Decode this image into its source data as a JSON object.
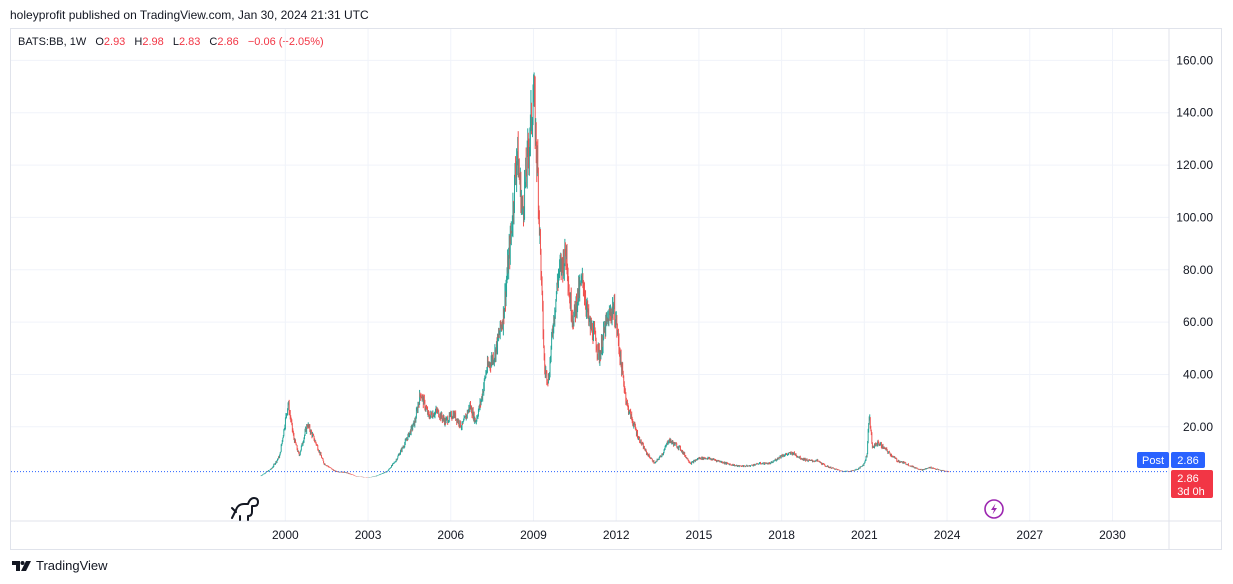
{
  "header": {
    "text": "holeyprofit published on TradingView.com, Jan 30, 2024 21:31 UTC"
  },
  "legend": {
    "symbol": "BATS:BB, 1W",
    "o_label": "O",
    "o_value": "2.93",
    "h_label": "H",
    "h_value": "2.98",
    "l_label": "L",
    "l_value": "2.83",
    "c_label": "C",
    "c_value": "2.86",
    "change": "−0.06 (−2.05%)"
  },
  "price_labels": {
    "post_label": "Post",
    "post_value": "2.86",
    "last_value": "2.86",
    "countdown": "3d 0h"
  },
  "footer": {
    "brand": "TradingView"
  },
  "colors": {
    "up": "#26a69a",
    "down": "#ef5350",
    "post_badge": "#2962ff",
    "last_badge": "#f23645",
    "event_icon": "#9c27b0"
  },
  "icons": {
    "chart_start": "dinosaur-icon",
    "event": "lightning-icon",
    "logo": "tradingview-logo-icon"
  },
  "chart_data": {
    "type": "candlestick",
    "interval": "1W",
    "yticks": [
      "160.00",
      "140.00",
      "120.00",
      "100.00",
      "80.00",
      "60.00",
      "40.00",
      "20.00"
    ],
    "ytick_values": [
      160,
      140,
      120,
      100,
      80,
      60,
      40,
      20
    ],
    "xticks": [
      "2000",
      "2003",
      "2006",
      "2009",
      "2012",
      "2015",
      "2018",
      "2021",
      "2024",
      "2027",
      "2030"
    ],
    "xtick_values": [
      2000,
      2003,
      2006,
      2009,
      2012,
      2015,
      2018,
      2021,
      2024,
      2027,
      2030
    ],
    "ylim": [
      -16,
      172
    ],
    "xlim": [
      1990.05,
      2032.05
    ],
    "last_price": 2.86,
    "price_path": [
      [
        1999.1,
        1.2
      ],
      [
        1999.5,
        4.0
      ],
      [
        1999.8,
        9.0
      ],
      [
        2000.1,
        29.0
      ],
      [
        2000.3,
        16.0
      ],
      [
        2000.5,
        9.0
      ],
      [
        2000.8,
        21.0
      ],
      [
        2001.1,
        14.0
      ],
      [
        2001.4,
        6.0
      ],
      [
        2001.8,
        3.0
      ],
      [
        2002.2,
        2.5
      ],
      [
        2002.6,
        1.0
      ],
      [
        2003.0,
        0.6
      ],
      [
        2003.3,
        1.2
      ],
      [
        2003.7,
        3.0
      ],
      [
        2004.0,
        7.0
      ],
      [
        2004.3,
        13.0
      ],
      [
        2004.7,
        22.0
      ],
      [
        2004.9,
        33.0
      ],
      [
        2005.2,
        24.0
      ],
      [
        2005.5,
        26.0
      ],
      [
        2005.8,
        22.0
      ],
      [
        2006.1,
        25.0
      ],
      [
        2006.4,
        20.0
      ],
      [
        2006.7,
        28.0
      ],
      [
        2006.9,
        22.0
      ],
      [
        2007.1,
        30.0
      ],
      [
        2007.3,
        42.0
      ],
      [
        2007.6,
        48.0
      ],
      [
        2007.9,
        62.0
      ],
      [
        2008.2,
        95.0
      ],
      [
        2008.4,
        126.0
      ],
      [
        2008.6,
        102.0
      ],
      [
        2008.9,
        135.0
      ],
      [
        2009.0,
        148.0
      ],
      [
        2009.15,
        118.0
      ],
      [
        2009.3,
        72.0
      ],
      [
        2009.4,
        42.0
      ],
      [
        2009.55,
        38.0
      ],
      [
        2009.7,
        58.0
      ],
      [
        2009.9,
        78.0
      ],
      [
        2010.1,
        84.0
      ],
      [
        2010.2,
        88.0
      ],
      [
        2010.3,
        70.0
      ],
      [
        2010.45,
        61.0
      ],
      [
        2010.6,
        70.0
      ],
      [
        2010.8,
        76.0
      ],
      [
        2011.0,
        60.0
      ],
      [
        2011.2,
        55.0
      ],
      [
        2011.4,
        47.0
      ],
      [
        2011.6,
        58.0
      ],
      [
        2011.9,
        66.0
      ],
      [
        2012.0,
        60.0
      ],
      [
        2012.2,
        42.0
      ],
      [
        2012.4,
        28.0
      ],
      [
        2012.6,
        22.0
      ],
      [
        2012.8,
        16.0
      ],
      [
        2013.1,
        10.0
      ],
      [
        2013.4,
        6.0
      ],
      [
        2013.7,
        10.0
      ],
      [
        2013.9,
        15.0
      ],
      [
        2014.3,
        12.0
      ],
      [
        2014.7,
        6.0
      ],
      [
        2015.0,
        8.0
      ],
      [
        2015.3,
        8.0
      ],
      [
        2015.7,
        7.0
      ],
      [
        2016.0,
        6.0
      ],
      [
        2016.4,
        5.0
      ],
      [
        2016.8,
        5.0
      ],
      [
        2017.2,
        6.0
      ],
      [
        2017.6,
        6.0
      ],
      [
        2018.0,
        9.0
      ],
      [
        2018.4,
        10.0
      ],
      [
        2018.7,
        8.0
      ],
      [
        2019.0,
        7.0
      ],
      [
        2019.3,
        7.0
      ],
      [
        2019.6,
        5.0
      ],
      [
        2019.9,
        4.0
      ],
      [
        2020.2,
        3.0
      ],
      [
        2020.5,
        3.0
      ],
      [
        2020.8,
        4.0
      ],
      [
        2021.0,
        6.0
      ],
      [
        2021.1,
        10.0
      ],
      [
        2021.17,
        25.0
      ],
      [
        2021.3,
        12.0
      ],
      [
        2021.5,
        14.0
      ],
      [
        2021.7,
        12.0
      ],
      [
        2021.9,
        10.0
      ],
      [
        2022.2,
        7.0
      ],
      [
        2022.5,
        6.0
      ],
      [
        2022.8,
        4.5
      ],
      [
        2023.1,
        3.5
      ],
      [
        2023.4,
        4.5
      ],
      [
        2023.7,
        3.5
      ],
      [
        2023.95,
        3.0
      ],
      [
        2024.08,
        2.86
      ]
    ]
  }
}
